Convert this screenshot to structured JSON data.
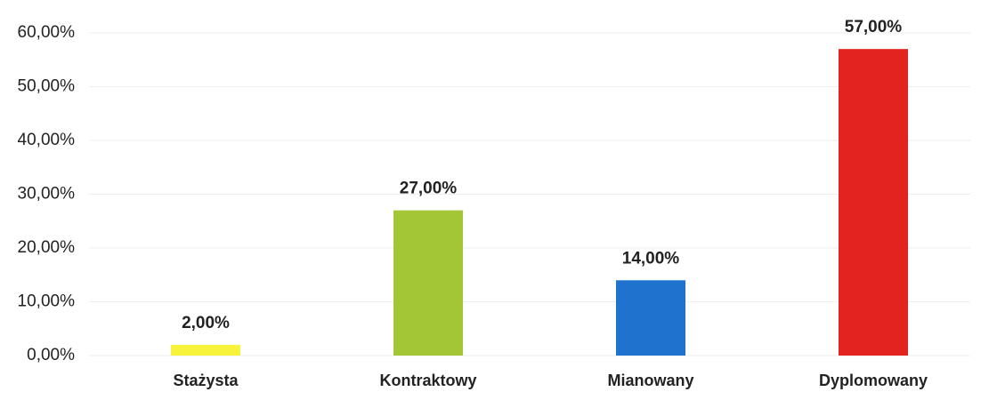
{
  "chart_data": {
    "type": "bar",
    "categories": [
      "Stażysta",
      "Kontraktowy",
      "Mianowany",
      "Dyplomowany"
    ],
    "values": [
      2,
      27,
      14,
      57
    ],
    "value_labels": [
      "2,00%",
      "27,00%",
      "14,00%",
      "57,00%"
    ],
    "colors": [
      "#f7f23a",
      "#a3c637",
      "#1f73cf",
      "#e3231f"
    ],
    "ylim": [
      0,
      60
    ],
    "yticks": [
      {
        "value": 0,
        "label": "0,00%"
      },
      {
        "value": 10,
        "label": "10,00%"
      },
      {
        "value": 20,
        "label": "20,00%"
      },
      {
        "value": 30,
        "label": "30,00%"
      },
      {
        "value": 40,
        "label": "40,00%"
      },
      {
        "value": 50,
        "label": "50,00%"
      },
      {
        "value": 60,
        "label": "60,00%"
      }
    ],
    "grid": true
  }
}
